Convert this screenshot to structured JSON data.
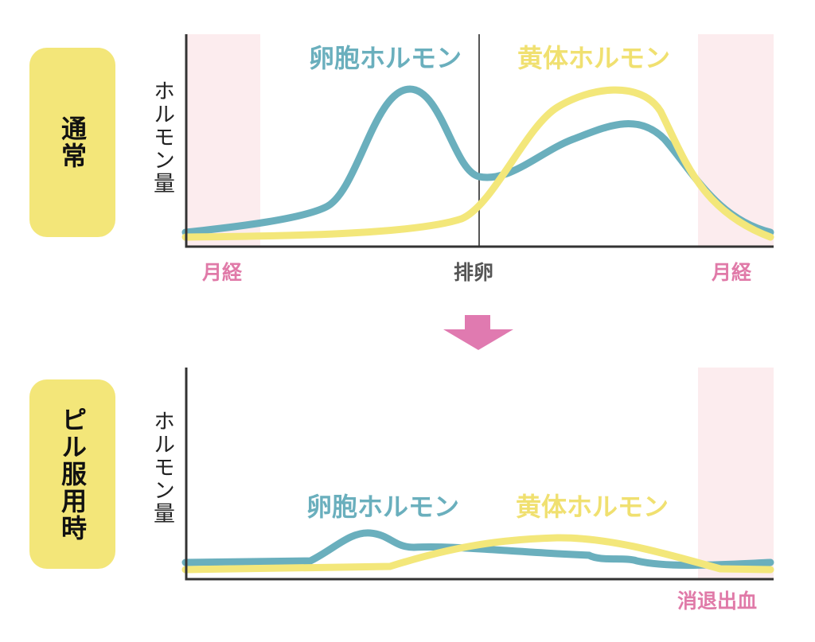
{
  "top_panel": {
    "title": "通常",
    "y_axis_label": "ホルモン量",
    "follicular_label": "卵胞ホルモン",
    "luteal_label": "黄体ホルモン",
    "menses_left": "月経",
    "ovulation": "排卵",
    "menses_right": "月経"
  },
  "bottom_panel": {
    "title": "ピル服用時",
    "y_axis_label": "ホルモン量",
    "follicular_label": "卵胞ホルモン",
    "luteal_label": "黄体ホルモン",
    "withdrawal_bleeding": "消退出血"
  },
  "colors": {
    "label_box": "#f3e679",
    "follicular": "#6aafbd",
    "luteal": "#f3e77a",
    "menses_band": "#fcecee",
    "menses_text": "#e07aa8",
    "arrow": "#e07ab0"
  }
}
